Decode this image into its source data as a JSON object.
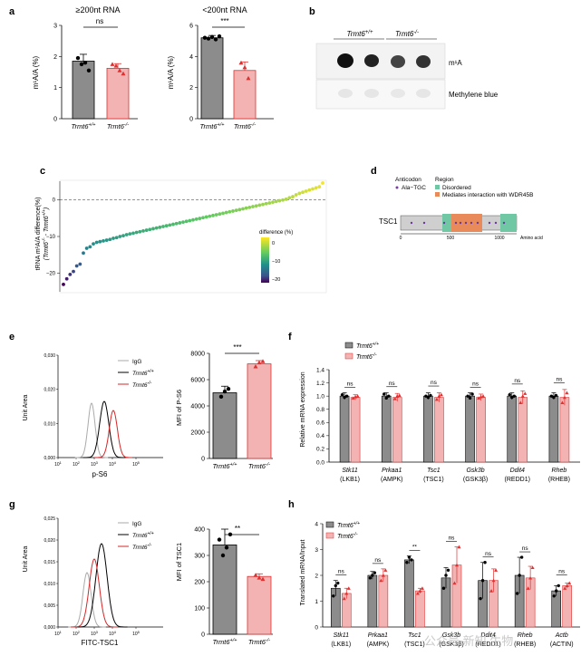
{
  "panel_letters": {
    "a": "a",
    "b": "b",
    "c": "c",
    "d": "d",
    "e": "e",
    "f": "f",
    "g": "g",
    "h": "h"
  },
  "genotypes": {
    "wt": "Trmt6+/+",
    "ko": "Trmt6-/-"
  },
  "colors": {
    "wt_fill": "#8c8c8c",
    "ko_fill": "#f4b3b3",
    "ko_edge": "#e03030",
    "accent_red": "#d62728",
    "disordered": "#6fc7a4",
    "wdr45b": "#e88a5a"
  },
  "panel_a": {
    "left": {
      "title": "≥200nt RNA",
      "ylabel": "m¹A/A (%)",
      "sig": "ns",
      "yticks": [
        "0",
        "1",
        "2",
        "3"
      ]
    },
    "right": {
      "title": "<200nt RNA",
      "ylabel": "m¹A/A (%)",
      "sig": "***",
      "yticks": [
        "0",
        "2",
        "4",
        "6"
      ]
    }
  },
  "panel_b": {
    "header_wt": "Trmt6+/+",
    "header_ko": "Trmt6-/-",
    "row1": "m¹A",
    "row2": "Methylene blue"
  },
  "panel_c": {
    "ylabel": "tRNA m¹A/A difference(%)",
    "ylabel2": "(Trmt6-/- - Trmt6+/+)",
    "yticks": [
      "0",
      "−10",
      "−20"
    ],
    "legend_title": "difference (%)",
    "legend_ticks": [
      "0",
      "−10",
      "−20"
    ]
  },
  "panel_d": {
    "legend_anticodon": "Anticodon",
    "legend_ala": "Ala−TGC",
    "legend_region": "Region",
    "legend_disordered": "Disordered",
    "legend_wdr": "Mediates interaction with WDR45B",
    "protein": "TSC1",
    "ticks": [
      "0",
      "500",
      "1000"
    ],
    "axis_unit": "Amino acid"
  },
  "panel_e": {
    "xlabel": "p-S6",
    "ylabel": "Unit Area",
    "yticks": [
      "0,000",
      "0,010",
      "0,020",
      "0,030"
    ],
    "legend": [
      "IgG",
      "Trmt6+/+",
      "Trmt6-/-"
    ],
    "bar": {
      "ylabel": "MFI of P-S6",
      "sig": "***",
      "yticks": [
        "0",
        "2000",
        "4000",
        "6000",
        "8000"
      ]
    }
  },
  "panel_f": {
    "ylabel": "Relative mRNA expression",
    "yticks": [
      "0.0",
      "0.2",
      "0.4",
      "0.6",
      "0.8",
      "1.0",
      "1.2",
      "1.4"
    ],
    "genes": [
      "Stk11",
      "Prkaa1",
      "Tsc1",
      "Gsk3b",
      "Ddit4",
      "Rheb"
    ],
    "proteins": [
      "(LKB1)",
      "(AMPK)",
      "(TSC1)",
      "(GSK3β)",
      "(REDD1)",
      "(RHEB)"
    ],
    "sigs": [
      "ns",
      "ns",
      "ns",
      "ns",
      "ns",
      "ns"
    ]
  },
  "panel_g": {
    "xlabel": "FITC-TSC1",
    "ylabel": "Unit Area",
    "yticks": [
      "0,000",
      "0,005",
      "0,010",
      "0,015",
      "0,020",
      "0,025"
    ],
    "legend": [
      "IgG",
      "Trmt6+/+",
      "Trmt6-/-"
    ],
    "bar": {
      "ylabel": "MFI of TSC1",
      "sig": "**",
      "yticks": [
        "0",
        "100",
        "200",
        "300",
        "400"
      ]
    }
  },
  "panel_h": {
    "ylabel": "Translated mRNA/Input",
    "yticks": [
      "0",
      "1",
      "2",
      "3",
      "4"
    ],
    "genes": [
      "Stk11",
      "Prkaa1",
      "Tsc1",
      "Gsk3b",
      "Ddit4",
      "Rheb",
      "Actb"
    ],
    "proteins": [
      "(LKB1)",
      "(AMPK)",
      "(TSC1)",
      "(GSK3β)",
      "(REDD1)",
      "(RHEB)",
      "(ACTIN)"
    ],
    "sigs": [
      "ns",
      "ns",
      "**",
      "ns",
      "ns",
      "ns",
      "ns"
    ]
  },
  "watermark": "公众号 新知 生物",
  "chart_data": [
    {
      "type": "bar",
      "id": "a-left",
      "title": "≥200nt RNA",
      "ylabel": "m¹A/A (%)",
      "ylim": [
        0,
        3
      ],
      "categories": [
        "Trmt6+/+",
        "Trmt6-/-"
      ],
      "values": [
        1.85,
        1.62
      ]
    },
    {
      "type": "bar",
      "id": "a-right",
      "title": "<200nt RNA",
      "ylabel": "m¹A/A (%)",
      "ylim": [
        0,
        6
      ],
      "categories": [
        "Trmt6+/+",
        "Trmt6-/-"
      ],
      "values": [
        5.2,
        3.1
      ]
    },
    {
      "type": "scatter",
      "id": "c",
      "ylabel": "tRNA m¹A/A difference(%)",
      "ylim": [
        -25,
        5
      ],
      "values": [
        -23,
        -21.5,
        -20.3,
        -19.5,
        -18,
        -17.5,
        -14.5,
        -13.2,
        -12.8,
        -12,
        -11.6,
        -11.4,
        -11.2,
        -11,
        -10.8,
        -10.5,
        -10.3,
        -10,
        -9.8,
        -9.5,
        -9.3,
        -9.1,
        -8.9,
        -8.7,
        -8.5,
        -8.3,
        -8.1,
        -7.9,
        -7.7,
        -7.5,
        -7.3,
        -7.1,
        -6.9,
        -6.7,
        -6.5,
        -6.3,
        -6.1,
        -5.9,
        -5.7,
        -5.5,
        -5.3,
        -5.1,
        -4.9,
        -4.7,
        -4.5,
        -4.3,
        -4.1,
        -3.9,
        -3.7,
        -3.5,
        -3.3,
        -3.1,
        -2.9,
        -2.7,
        -2.5,
        -2.3,
        -2.1,
        -1.9,
        -1.7,
        -1.5,
        -1.3,
        -1.1,
        -0.9,
        -0.7,
        -0.5,
        -0.3,
        -0.1,
        0.1,
        0.5,
        0.8,
        1.3,
        1.7,
        2,
        2.3,
        2.6,
        2.9,
        3.2,
        3.5,
        4.5
      ]
    },
    {
      "type": "bar",
      "id": "e-bar",
      "ylabel": "MFI of P-S6",
      "ylim": [
        0,
        8000
      ],
      "categories": [
        "Trmt6+/+",
        "Trmt6-/-"
      ],
      "values": [
        5000,
        7200
      ]
    },
    {
      "type": "bar",
      "id": "f",
      "ylabel": "Relative mRNA expression",
      "ylim": [
        0,
        1.4
      ],
      "categories": [
        "Stk11",
        "Prkaa1",
        "Tsc1",
        "Gsk3b",
        "Ddit4",
        "Rheb"
      ],
      "series": [
        {
          "name": "Trmt6+/+",
          "values": [
            1.0,
            1.0,
            1.0,
            1.0,
            1.0,
            1.0
          ]
        },
        {
          "name": "Trmt6-/-",
          "values": [
            0.98,
            0.98,
            0.98,
            0.98,
            0.98,
            0.98
          ]
        }
      ]
    },
    {
      "type": "bar",
      "id": "g-bar",
      "ylabel": "MFI of TSC1",
      "ylim": [
        0,
        400
      ],
      "categories": [
        "Trmt6+/+",
        "Trmt6-/-"
      ],
      "values": [
        340,
        220
      ]
    },
    {
      "type": "bar",
      "id": "h",
      "ylabel": "Translated mRNA/Input",
      "ylim": [
        0,
        4
      ],
      "categories": [
        "Stk11",
        "Prkaa1",
        "Tsc1",
        "Gsk3b",
        "Ddit4",
        "Rheb",
        "Actb"
      ],
      "series": [
        {
          "name": "Trmt6+/+",
          "values": [
            1.5,
            2.0,
            2.6,
            1.9,
            1.8,
            2.0,
            1.4
          ]
        },
        {
          "name": "Trmt6-/-",
          "values": [
            1.3,
            2.0,
            1.4,
            2.4,
            1.8,
            1.9,
            1.6
          ]
        }
      ]
    }
  ]
}
